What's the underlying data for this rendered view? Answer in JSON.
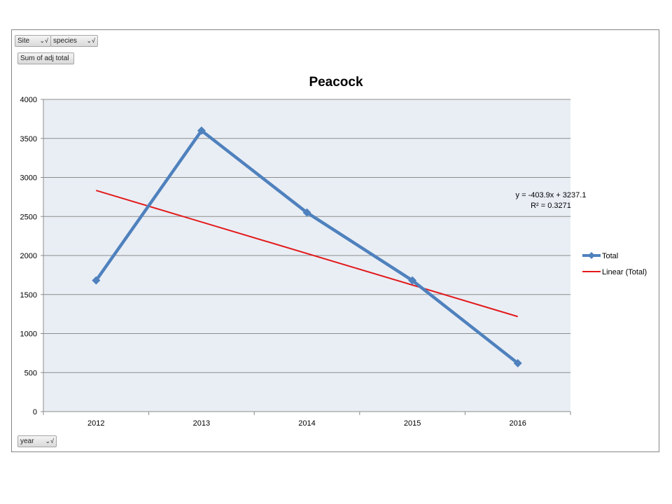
{
  "filters": {
    "site": "Site",
    "species": "species",
    "value_field": "Sum of adj total",
    "year": "year",
    "dropdown_glyph": "⌄√"
  },
  "chart_data": {
    "type": "line",
    "title": "Peacock",
    "categories": [
      "2012",
      "2013",
      "2014",
      "2015",
      "2016"
    ],
    "series": [
      {
        "name": "Total",
        "values": [
          1680,
          3600,
          2550,
          1680,
          620
        ],
        "color": "#4f81bd",
        "marker": "diamond"
      },
      {
        "name": "Linear (Total)",
        "values": [
          2833.2,
          2429.3,
          2025.4,
          1621.5,
          1217.6
        ],
        "color": "#e31a1c",
        "trendline": true
      }
    ],
    "ylim": [
      0,
      4000
    ],
    "yticks": [
      0,
      500,
      1000,
      1500,
      2000,
      2500,
      3000,
      3500,
      4000
    ],
    "grid": true,
    "legend_position": "right",
    "annotations": {
      "equation": "y = -403.9x + 3237.1",
      "r_squared": "R² = 0.3271"
    },
    "plot_background": "#e9eef5"
  }
}
